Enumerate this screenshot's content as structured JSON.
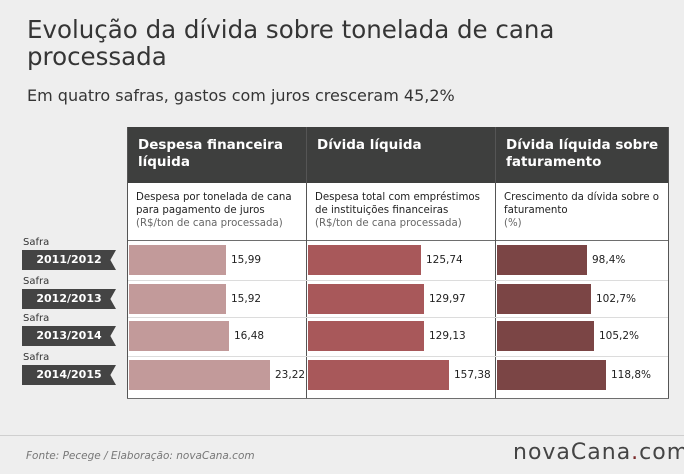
{
  "title": "Evolução da dívida sobre tonelada de cana processada",
  "subtitle": "Em quatro safras, gastos com juros cresceram 45,2%",
  "footer": {
    "source": "Fonte: Pecege / Elaboração: novaCana.com",
    "brand_main": "novaCana",
    "brand_dot": ".",
    "brand_tld": "com"
  },
  "colors": {
    "col1": "#c29a9a",
    "col2": "#a8585a",
    "col3": "#7b4545",
    "header_bg": "#3e3f3e"
  },
  "chart_data": {
    "type": "bar",
    "categories": [
      "2011/2012",
      "2012/2013",
      "2013/2014",
      "2014/2015"
    ],
    "row_prefix": "Safra",
    "series": [
      {
        "name": "Despesa financeira líquida",
        "description": "Despesa por tonelada de cana para pagamento de juros",
        "unit": "(R$/ton de cana processada)",
        "values": [
          15.99,
          15.92,
          16.48,
          23.22
        ],
        "labels": [
          "15,99",
          "15,92",
          "16,48",
          "23,22"
        ]
      },
      {
        "name": "Dívida líquida",
        "description": "Despesa total com empréstimos de instituições financeiras",
        "unit": "(R$/ton de cana processada)",
        "values": [
          125.74,
          129.97,
          129.13,
          157.38
        ],
        "labels": [
          "125,74",
          "129,97",
          "129,13",
          "157,38"
        ]
      },
      {
        "name": "Dívida líquida sobre faturamento",
        "description": "Crescimento da dívida sobre o faturamento",
        "unit": "(%)",
        "values": [
          98.4,
          102.7,
          105.2,
          118.8
        ],
        "labels": [
          "98,4%",
          "102,7%",
          "105,2%",
          "118,8%"
        ]
      }
    ]
  }
}
